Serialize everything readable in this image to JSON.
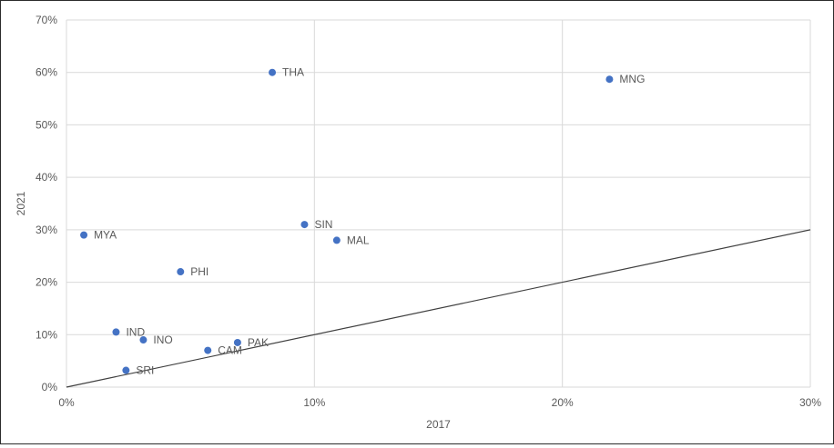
{
  "chart_data": {
    "type": "scatter",
    "title": "",
    "xlabel": "2017",
    "ylabel": "2021",
    "xlim": [
      0,
      0.3
    ],
    "ylim": [
      0,
      0.7
    ],
    "x_ticks": [
      "0%",
      "10%",
      "20%",
      "30%"
    ],
    "y_ticks": [
      "0%",
      "10%",
      "20%",
      "30%",
      "40%",
      "50%",
      "60%",
      "70%"
    ],
    "x_tick_values": [
      0,
      0.1,
      0.2,
      0.3
    ],
    "y_tick_values": [
      0,
      0.1,
      0.2,
      0.3,
      0.4,
      0.5,
      0.6,
      0.7
    ],
    "grid": "on",
    "reference_line": {
      "from": [
        0,
        0
      ],
      "to": [
        0.3,
        0.3
      ]
    },
    "marker_color": "#4472C4",
    "line_color": "#404040",
    "grid_color": "#D9D9D9",
    "points": [
      {
        "label": "THA",
        "x": 0.083,
        "y": 0.6
      },
      {
        "label": "MNG",
        "x": 0.219,
        "y": 0.587
      },
      {
        "label": "SIN",
        "x": 0.096,
        "y": 0.31
      },
      {
        "label": "MAL",
        "x": 0.109,
        "y": 0.28
      },
      {
        "label": "MYA",
        "x": 0.007,
        "y": 0.29
      },
      {
        "label": "PHI",
        "x": 0.046,
        "y": 0.22
      },
      {
        "label": "IND",
        "x": 0.02,
        "y": 0.105
      },
      {
        "label": "INO",
        "x": 0.031,
        "y": 0.09
      },
      {
        "label": "PAK",
        "x": 0.069,
        "y": 0.085
      },
      {
        "label": "CAM",
        "x": 0.057,
        "y": 0.07
      },
      {
        "label": "SRI",
        "x": 0.024,
        "y": 0.032
      }
    ]
  }
}
